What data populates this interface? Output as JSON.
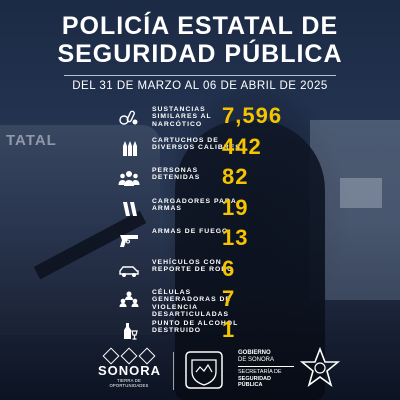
{
  "header": {
    "title_line1": "POLICÍA ESTATAL DE",
    "title_line2": "SEGURIDAD PÚBLICA",
    "dates": "DEL 31 DE MARZO AL 06 DE ABRIL DE 2025"
  },
  "background_text": "TATAL",
  "stats": [
    {
      "icon": "drugs-icon",
      "label": "SUSTANCIAS SIMILARES AL NARCÓTICO",
      "value": "7,596"
    },
    {
      "icon": "cartridges-icon",
      "label": "CARTUCHOS DE DIVERSOS CALIBRES",
      "value": "442"
    },
    {
      "icon": "people-icon",
      "label": "PERSONAS DETENIDAS",
      "value": "82"
    },
    {
      "icon": "magazine-icon",
      "label": "CARGADORES PARA ARMAS",
      "value": "19"
    },
    {
      "icon": "gun-icon",
      "label": "ARMAS DE FUEGO",
      "value": "13"
    },
    {
      "icon": "car-icon",
      "label": "VEHÍCULOS CON REPORTE DE ROBO",
      "value": "6"
    },
    {
      "icon": "group-icon",
      "label": "CÉLULAS GENERADORAS DE VIOLENCIA DESARTICULADAS",
      "value": "7"
    },
    {
      "icon": "alcohol-icon",
      "label": "PUNTO DE ALCOHOL DESTRUIDO",
      "value": "1"
    }
  ],
  "footer": {
    "sonora_name": "SONORA",
    "sonora_tagline": "TIERRA DE OPORTUNIDADES",
    "gob_line1": "GOBIERNO",
    "gob_line2": "DE SONORA",
    "sec_line1": "SECRETARÍA DE",
    "sec_line2": "SEGURIDAD",
    "sec_line3": "PÚBLICA"
  },
  "colors": {
    "accent": "#f5c400",
    "text": "#ffffff",
    "background": "#1c2a44"
  }
}
